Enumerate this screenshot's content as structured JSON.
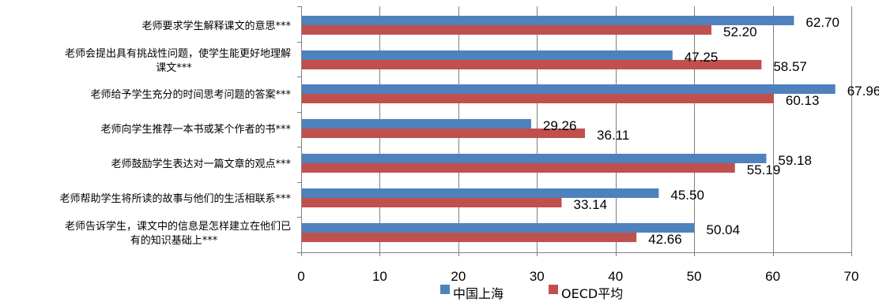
{
  "chart_data": {
    "type": "bar",
    "orientation": "horizontal",
    "categories": [
      [
        "老师要求学生解释课文的意思***"
      ],
      [
        "老师会提出具有挑战性问题，使学生能更好地理解",
        "课文***"
      ],
      [
        "老师给予学生充分的时间思考问题的答案***"
      ],
      [
        "老师向学生推荐一本书或某个作者的书***"
      ],
      [
        "老师鼓励学生表达对一篇文章的观点***"
      ],
      [
        "老师帮助学生将所读的故事与他们的生活相联系***"
      ],
      [
        "老师告诉学生，课文中的信息是怎样建立在他们已",
        "有的知识基础上***"
      ]
    ],
    "series": [
      {
        "name": "中国上海",
        "color": "#4f81bd",
        "values": [
          62.7,
          47.25,
          67.96,
          29.26,
          59.18,
          45.5,
          50.04
        ],
        "labels": [
          "62.70",
          "47.25",
          "67.96",
          "29.26",
          "59.18",
          "45.50",
          "50.04"
        ]
      },
      {
        "name": "OECD平均",
        "color": "#c0504d",
        "values": [
          52.2,
          58.57,
          60.13,
          36.11,
          55.19,
          33.14,
          42.66
        ],
        "labels": [
          "52.20",
          "58.57",
          "60.13",
          "36.11",
          "55.19",
          "33.14",
          "42.66"
        ]
      }
    ],
    "xlim": [
      0,
      70
    ],
    "xticks": [
      "0",
      "10",
      "20",
      "30",
      "40",
      "50",
      "60",
      "70"
    ],
    "grid": true,
    "legend_position": "bottom"
  }
}
